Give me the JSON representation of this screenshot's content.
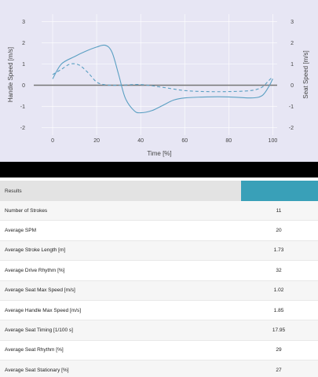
{
  "chart_data": {
    "type": "line",
    "xlabel": "Time [%]",
    "ylabel": "Handle Speed [m/s]",
    "y2label": "Seat Speed [m/s]",
    "xlim": [
      -5,
      102
    ],
    "ylim": [
      -2.35,
      3.35
    ],
    "x_ticks": [
      0,
      20,
      40,
      60,
      80,
      100
    ],
    "y_ticks": [
      -2,
      -1,
      0,
      1,
      2,
      3
    ],
    "series": [
      {
        "style": "solid",
        "color": "#5a9fc2",
        "x": [
          0,
          4,
          10,
          15,
          20,
          24,
          27,
          30,
          33,
          37,
          40,
          45,
          50,
          55,
          60,
          70,
          80,
          90,
          95,
          98,
          100
        ],
        "y": [
          0.3,
          1.0,
          1.35,
          1.6,
          1.8,
          1.88,
          1.55,
          0.5,
          -0.6,
          -1.2,
          -1.3,
          -1.2,
          -0.95,
          -0.7,
          -0.6,
          -0.55,
          -0.55,
          -0.6,
          -0.5,
          -0.1,
          0.3
        ]
      },
      {
        "style": "dashed",
        "color": "#5a9fc2",
        "x": [
          0,
          4,
          8,
          12,
          16,
          20,
          24,
          30,
          40,
          50,
          60,
          70,
          80,
          90,
          95,
          98,
          100
        ],
        "y": [
          0.5,
          0.75,
          1.0,
          0.95,
          0.6,
          0.15,
          0.02,
          0.0,
          0.03,
          -0.1,
          -0.25,
          -0.3,
          -0.3,
          -0.25,
          -0.1,
          0.2,
          0.4
        ]
      }
    ]
  },
  "results": {
    "header": "Results",
    "rows": [
      {
        "label": "Number of Strokes",
        "value": "11"
      },
      {
        "label": "Average SPM",
        "value": "20"
      },
      {
        "label": "Average Stroke Length [m]",
        "value": "1.73"
      },
      {
        "label": "Average Drive Rhythm [%]",
        "value": "32"
      },
      {
        "label": "Average Seat Max Speed [m/s]",
        "value": "1.02"
      },
      {
        "label": "Average Handle Max Speed [m/s]",
        "value": "1.85"
      },
      {
        "label": "Average Seat Timing [1/100 s]",
        "value": "17.95"
      },
      {
        "label": "Average Seat Rhythm [%]",
        "value": "29"
      },
      {
        "label": "Average Seat Stationary [%]",
        "value": "27"
      }
    ]
  },
  "colors": {
    "plot_background": "#e7e6f4",
    "line": "#5a9fc2",
    "header_accent": "#39a0b8"
  }
}
